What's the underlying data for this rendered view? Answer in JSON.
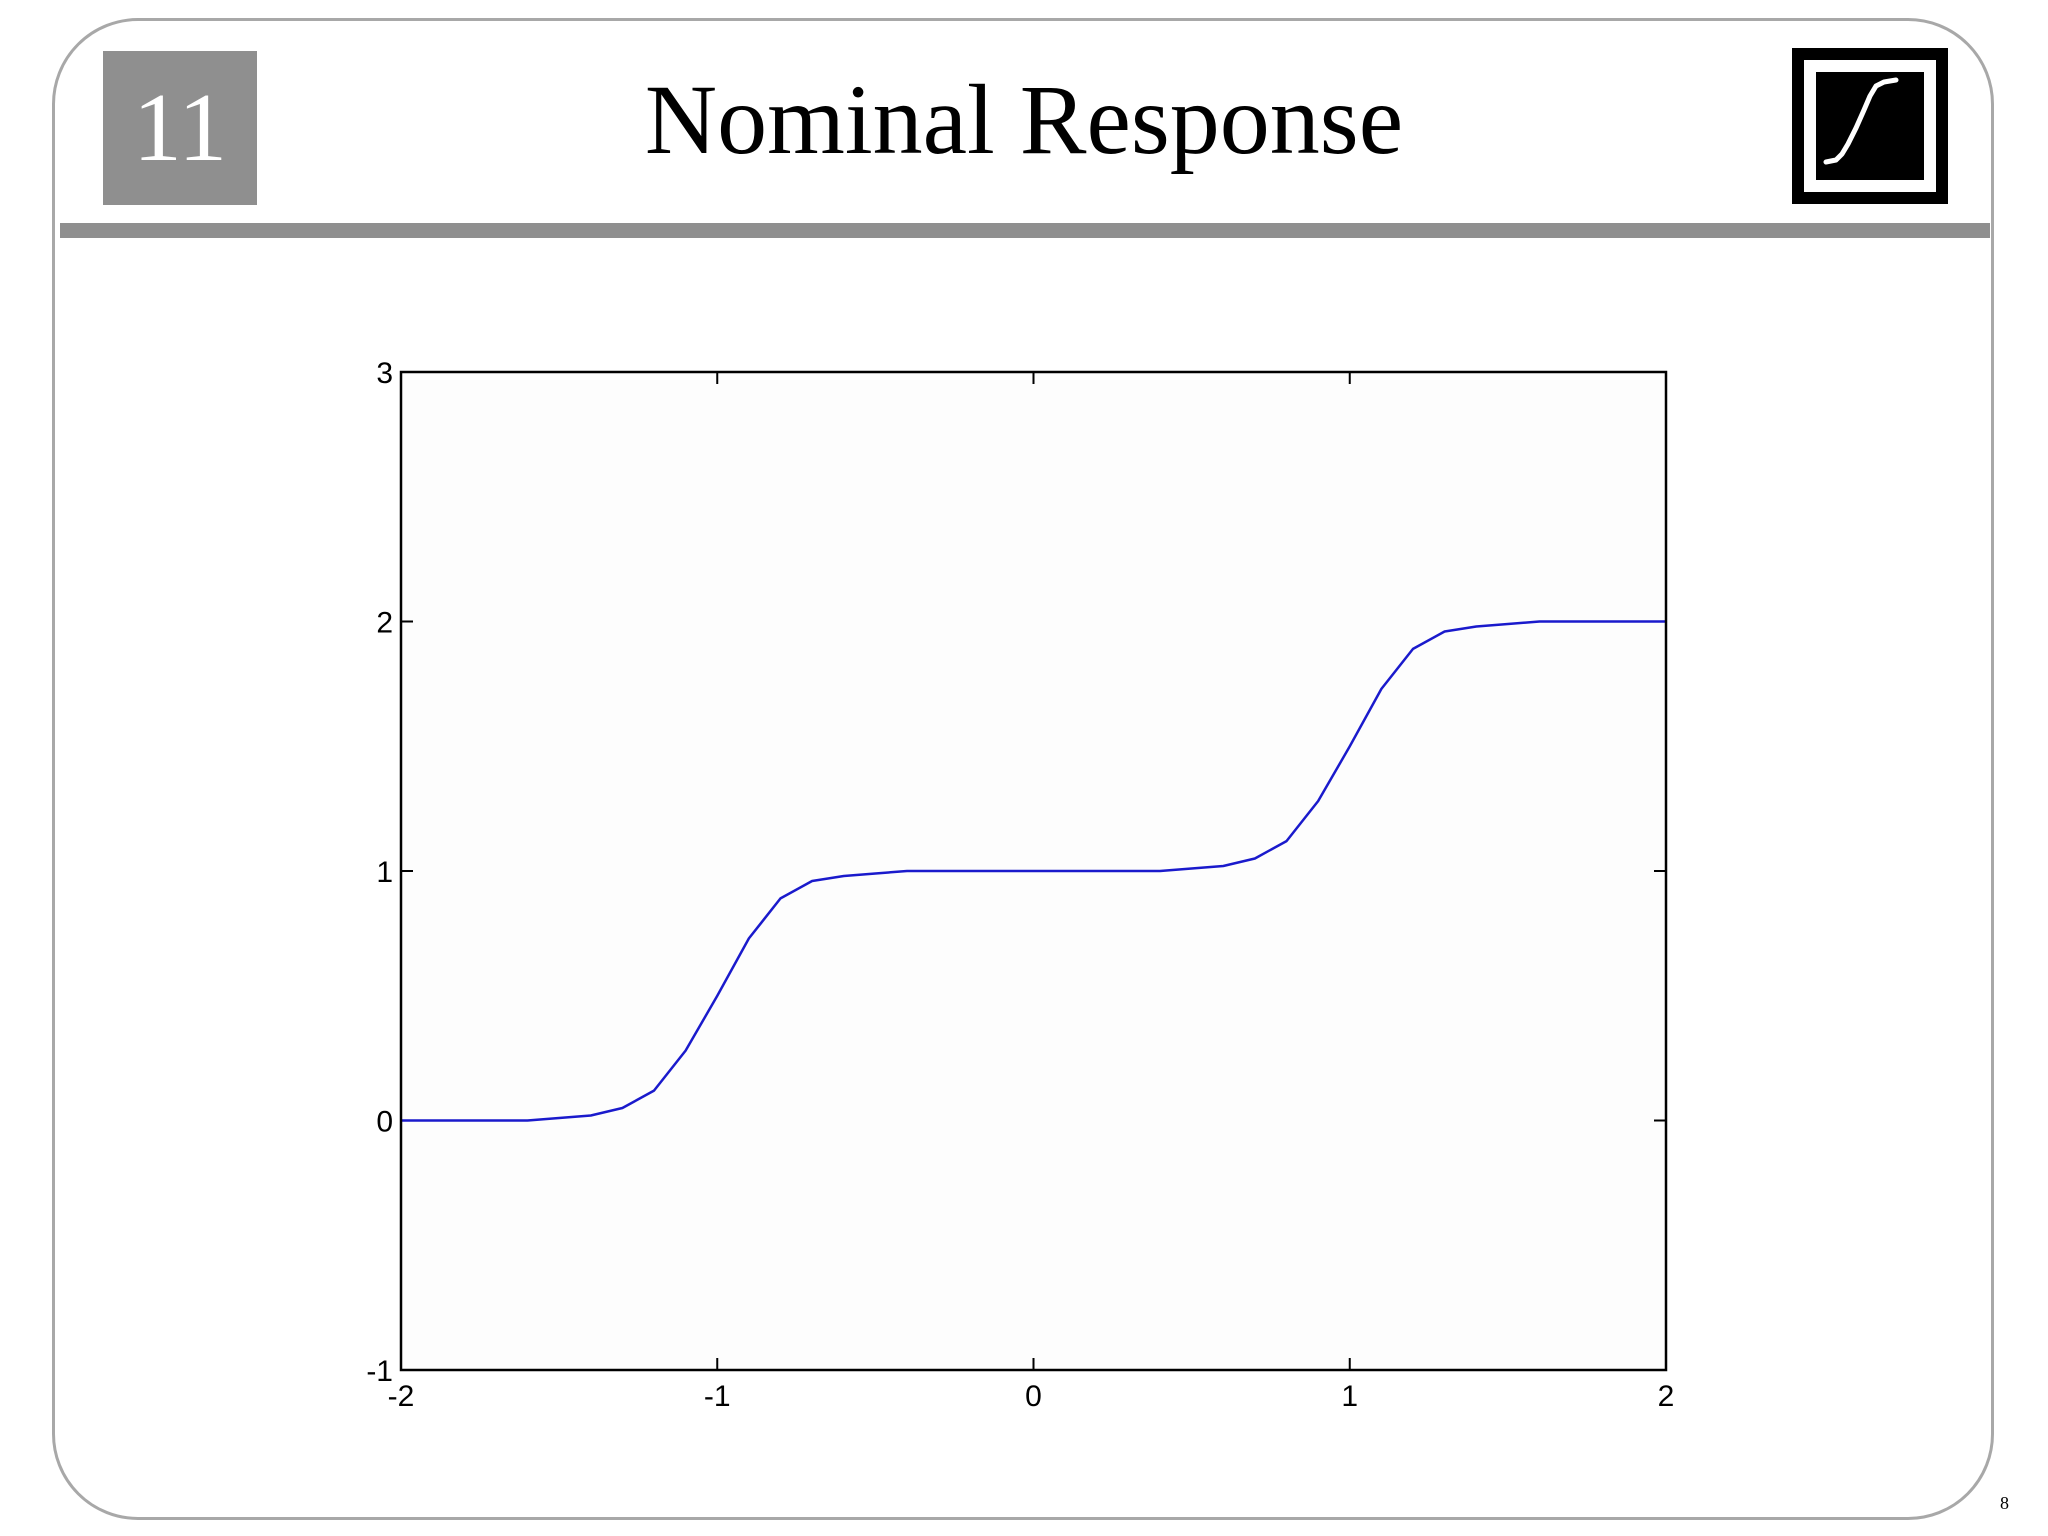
{
  "slide": {
    "chapter_number": "11",
    "title": "Nominal Response",
    "page_number": "8",
    "logo_icon": "s-curve-icon",
    "colors": {
      "chapter_box": "#8f8f8f",
      "rule": "#8f8f8f",
      "series_line": "#1a1acc"
    }
  },
  "chart_data": {
    "type": "line",
    "title": "",
    "xlabel": "",
    "ylabel": "",
    "xlim": [
      -2,
      2
    ],
    "ylim": [
      -1,
      3
    ],
    "x_ticks": [
      -2,
      -1,
      0,
      1,
      2
    ],
    "y_ticks": [
      -1,
      0,
      1,
      2,
      3
    ],
    "x_tick_labels": [
      "-2",
      "-1",
      "0",
      "1",
      "2"
    ],
    "y_tick_labels": [
      "-1",
      "0",
      "1",
      "2",
      "3"
    ],
    "grid": false,
    "series": [
      {
        "x": [
          -2.0,
          -1.9,
          -1.8,
          -1.7,
          -1.6,
          -1.5,
          -1.4,
          -1.3,
          -1.2,
          -1.1,
          -1.0,
          -0.9,
          -0.8,
          -0.7,
          -0.6,
          -0.5,
          -0.4,
          -0.3,
          -0.2,
          -0.1,
          0.0,
          0.1,
          0.2,
          0.3,
          0.4,
          0.5,
          0.6,
          0.7,
          0.8,
          0.9,
          1.0,
          1.1,
          1.2,
          1.3,
          1.4,
          1.5,
          1.6,
          1.7,
          1.8,
          1.9,
          2.0
        ],
        "y": [
          0.0,
          0.0,
          0.0,
          0.0,
          0.0,
          0.01,
          0.02,
          0.05,
          0.12,
          0.28,
          0.5,
          0.73,
          0.89,
          0.96,
          0.98,
          0.99,
          1.0,
          1.0,
          1.0,
          1.0,
          1.0,
          1.0,
          1.0,
          1.0,
          1.0,
          1.01,
          1.02,
          1.05,
          1.12,
          1.28,
          1.5,
          1.73,
          1.89,
          1.96,
          1.98,
          1.99,
          2.0,
          2.0,
          2.0,
          2.0,
          2.0
        ]
      }
    ]
  }
}
